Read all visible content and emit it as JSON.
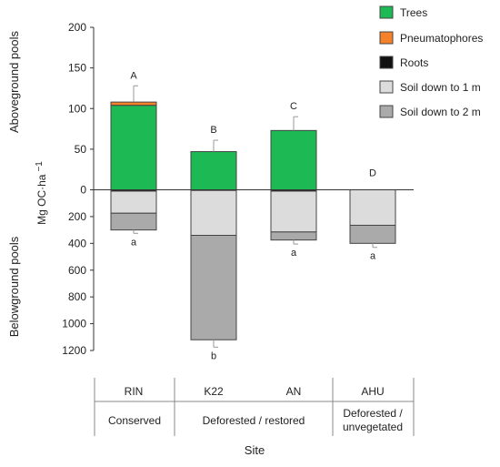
{
  "chart_data": {
    "type": "bar",
    "stacked": true,
    "categories": [
      "RIN",
      "K22",
      "AN",
      "AHU"
    ],
    "ylabel": "Mg OC·ha⁻¹",
    "ylabel_parts": {
      "base": "Mg OC·ha",
      "sup": "−1"
    },
    "xlabel": "Site",
    "region_labels": {
      "above": "Aboveground pools",
      "below": "Belowground pools"
    },
    "aboveground_ticks": [
      0,
      50,
      100,
      150,
      200
    ],
    "belowground_ticks": [
      200,
      400,
      600,
      800,
      1000,
      1200
    ],
    "ylim_above": [
      0,
      200
    ],
    "ylim_below": [
      0,
      1200
    ],
    "series": [
      {
        "name": "Trees",
        "pool": "above",
        "color": "#1db954",
        "values": [
          104,
          47,
          73,
          0
        ]
      },
      {
        "name": "Pneumatophores",
        "pool": "above",
        "color": "#f5822a",
        "values": [
          4,
          0,
          0,
          0
        ]
      },
      {
        "name": "Roots",
        "pool": "below",
        "color": "#111111",
        "values": [
          10,
          5,
          10,
          0
        ]
      },
      {
        "name": "Soil down to 1 m",
        "pool": "below",
        "color": "#dcdcdc",
        "values": [
          165,
          335,
          305,
          265
        ]
      },
      {
        "name": "Soil down to 2 m",
        "pool": "below",
        "color": "#aaaaaa",
        "values": [
          125,
          780,
          60,
          135
        ]
      }
    ],
    "error_above": [
      20,
      14,
      17,
      0
    ],
    "error_below": [
      25,
      55,
      30,
      30
    ],
    "letters_above": [
      "A",
      "B",
      "C",
      "D"
    ],
    "letters_below": [
      "a",
      "b",
      "a",
      "a"
    ],
    "groups": [
      {
        "label": "Conserved",
        "lines": [
          "Conserved"
        ],
        "categories": [
          "RIN"
        ]
      },
      {
        "label": "Deforested / restored",
        "lines": [
          "Deforested /  restored"
        ],
        "categories": [
          "K22",
          "AN"
        ]
      },
      {
        "label": "Deforested / unvegetated",
        "lines": [
          "Deforested /",
          "unvegetated"
        ],
        "categories": [
          "AHU"
        ]
      }
    ],
    "legend_position": "top-right",
    "grid": false
  }
}
